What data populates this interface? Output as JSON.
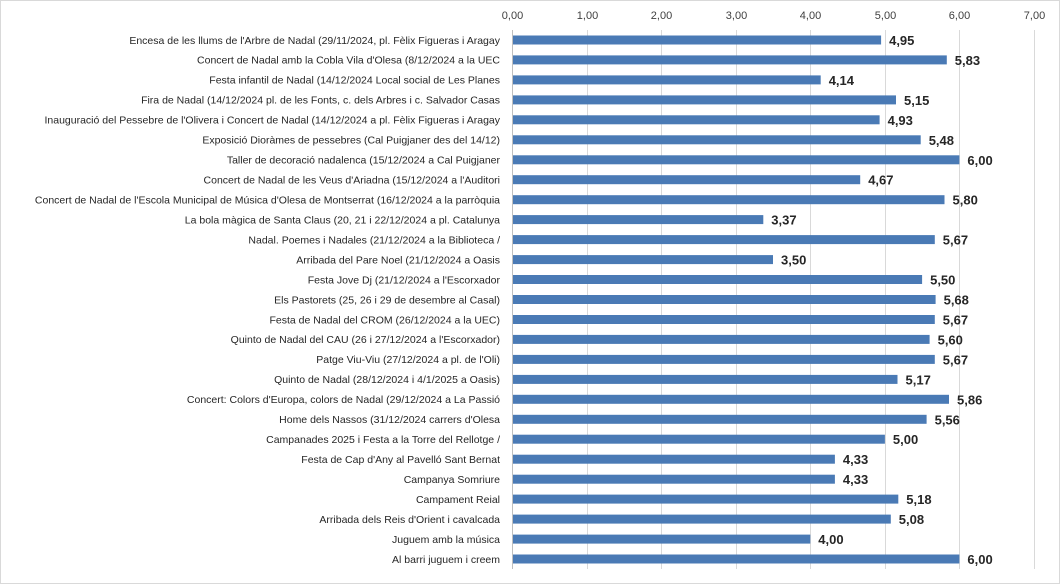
{
  "chart_data": {
    "type": "bar",
    "orientation": "horizontal",
    "title": "",
    "xlabel": "",
    "ylabel": "",
    "xlim": [
      0,
      7
    ],
    "x_ticks": [
      "0,00",
      "1,00",
      "2,00",
      "3,00",
      "4,00",
      "5,00",
      "6,00",
      "7,00"
    ],
    "x_tick_values": [
      0,
      1,
      2,
      3,
      4,
      5,
      6,
      7
    ],
    "axis_position": "top",
    "grid": true,
    "bar_color": "#4a7ab5",
    "categories": [
      "Encesa de les llums de l'Arbre de Nadal (29/11/2024, pl. Fèlix Figueras i Aragay",
      "Concert de Nadal amb la Cobla Vila d'Olesa (8/12/2024 a la UEC",
      "Festa infantil de Nadal (14/12/2024 Local social de Les Planes",
      "Fira de Nadal (14/12/2024 pl. de les Fonts, c. dels Arbres i c. Salvador Casas",
      "Inauguració del Pessebre de l'Olivera i Concert de Nadal (14/12/2024 a pl. Fèlix Figueras i Aragay",
      "Exposició Dioràmes de pessebres (Cal Puigjaner des del 14/12)",
      "Taller de decoració nadalenca (15/12/2024 a Cal Puigjaner",
      "Concert de Nadal de les Veus d'Ariadna (15/12/2024 a l'Auditori",
      "Concert de Nadal de l'Escola Municipal de Música d'Olesa de Montserrat (16/12/2024 a la parròquia",
      "La bola màgica de Santa Claus (20, 21 i 22/12/2024 a pl. Catalunya",
      "Nadal. Poemes i Nadales (21/12/2024 a la Biblioteca /",
      "Arribada del Pare Noel (21/12/2024 a Oasis",
      "Festa Jove Dj (21/12/2024 a l'Escorxador",
      "Els Pastorets (25, 26 i 29 de desembre al Casal)",
      "Festa de Nadal del CROM (26/12/2024 a la UEC)",
      "Quinto de Nadal del CAU (26 i 27/12/2024 a l'Escorxador)",
      "Patge Viu-Viu (27/12/2024 a pl. de l'Oli)",
      "Quinto de Nadal (28/12/2024 i 4/1/2025 a Oasis)",
      "Concert: Colors d'Europa, colors de Nadal (29/12/2024 a La Passió",
      "Home dels Nassos (31/12/2024 carrers d'Olesa",
      "Campanades 2025 i Festa a la Torre del Rellotge /",
      "Festa de Cap d'Any al Pavelló Sant Bernat",
      "Campanya Somriure",
      "Campament Reial",
      "Arribada dels Reis d'Orient i cavalcada",
      "Juguem amb la música",
      "Al barri juguem i creem"
    ],
    "values": [
      4.95,
      5.83,
      4.14,
      5.15,
      4.93,
      5.48,
      6.0,
      4.67,
      5.8,
      3.37,
      5.67,
      3.5,
      5.5,
      5.68,
      5.67,
      5.6,
      5.67,
      5.17,
      5.86,
      5.56,
      5.0,
      4.33,
      4.33,
      5.18,
      5.08,
      4.0,
      6.0
    ],
    "data_labels": [
      "4,95",
      "5,83",
      "4,14",
      "5,15",
      "4,93",
      "5,48",
      "6,00",
      "4,67",
      "5,80",
      "3,37",
      "5,67",
      "3,50",
      "5,50",
      "5,68",
      "5,67",
      "5,60",
      "5,67",
      "5,17",
      "5,86",
      "5,56",
      "5,00",
      "4,33",
      "4,33",
      "5,18",
      "5,08",
      "4,00",
      "6,00"
    ]
  }
}
